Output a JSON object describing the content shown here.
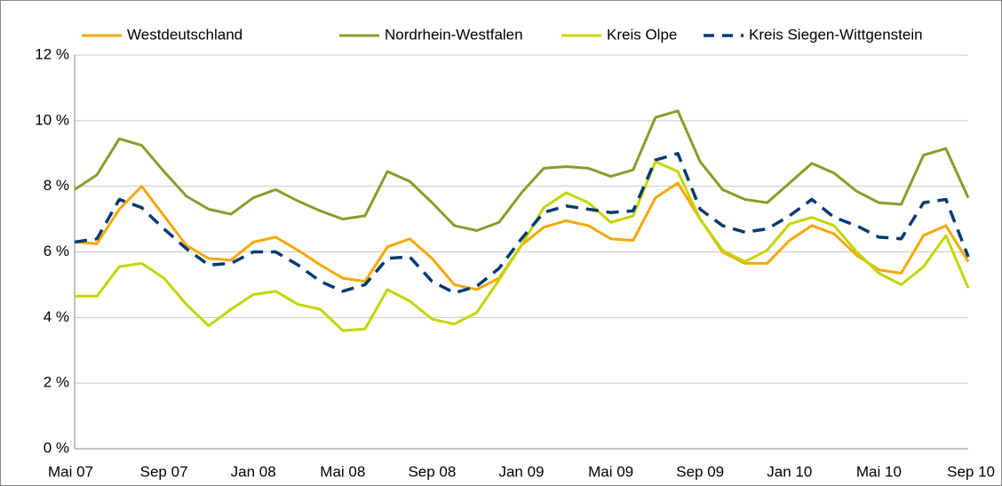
{
  "chart_data": {
    "type": "line",
    "categories": [
      "Mai 07",
      null,
      null,
      null,
      "Sep 07",
      null,
      null,
      null,
      "Jan 08",
      null,
      null,
      null,
      "Mai 08",
      null,
      null,
      null,
      "Sep 08",
      null,
      null,
      null,
      "Jan 09",
      null,
      null,
      null,
      "Mai 09",
      null,
      null,
      null,
      "Sep 09",
      null,
      null,
      null,
      "Jan 10",
      null,
      null,
      null,
      "Mai 10",
      null,
      null,
      null,
      "Sep 10"
    ],
    "series": [
      {
        "name": "Westdeutschland",
        "color": "#f5a800",
        "dashed": false,
        "values": [
          6.3,
          6.25,
          7.3,
          8.0,
          7.1,
          6.2,
          5.8,
          5.75,
          6.3,
          6.45,
          6.05,
          5.6,
          5.2,
          5.1,
          6.15,
          6.4,
          5.8,
          5.0,
          4.85,
          5.2,
          6.2,
          6.75,
          6.95,
          6.8,
          6.4,
          6.35,
          7.65,
          8.1,
          7.0,
          6.0,
          5.65,
          5.65,
          6.35,
          6.8,
          6.55,
          5.9,
          5.45,
          5.35,
          6.5,
          6.8,
          5.7
        ]
      },
      {
        "name": "Nordrhein-Westfalen",
        "color": "#8c9a2a",
        "dashed": false,
        "values": [
          7.9,
          8.35,
          9.45,
          9.25,
          8.45,
          7.7,
          7.3,
          7.15,
          7.65,
          7.9,
          7.55,
          7.25,
          7.0,
          7.1,
          8.45,
          8.15,
          7.5,
          6.8,
          6.65,
          6.9,
          7.8,
          8.55,
          8.6,
          8.55,
          8.3,
          8.5,
          10.1,
          10.3,
          8.75,
          7.9,
          7.6,
          7.5,
          8.1,
          8.7,
          8.4,
          7.85,
          7.5,
          7.45,
          8.95,
          9.15,
          7.65
        ]
      },
      {
        "name": "Kreis Olpe",
        "color": "#c4d600",
        "dashed": false,
        "values": [
          4.65,
          4.65,
          5.55,
          5.65,
          5.2,
          4.4,
          3.75,
          4.25,
          4.7,
          4.8,
          4.4,
          4.25,
          3.6,
          3.65,
          4.85,
          4.5,
          3.95,
          3.8,
          4.15,
          5.15,
          6.2,
          7.35,
          7.8,
          7.5,
          6.9,
          7.1,
          8.75,
          8.45,
          7.0,
          6.05,
          5.7,
          6.05,
          6.85,
          7.05,
          6.8,
          6.0,
          5.35,
          5.0,
          5.55,
          6.5,
          4.9
        ]
      },
      {
        "name": "Kreis Siegen-Wittgenstein",
        "color": "#003a70",
        "dashed": true,
        "values": [
          6.3,
          6.4,
          7.6,
          7.35,
          6.7,
          6.1,
          5.6,
          5.65,
          6.0,
          6.0,
          5.6,
          5.1,
          4.8,
          5.0,
          5.8,
          5.85,
          5.1,
          4.75,
          4.95,
          5.5,
          6.4,
          7.2,
          7.4,
          7.3,
          7.2,
          7.25,
          8.8,
          9.0,
          7.3,
          6.8,
          6.6,
          6.7,
          7.1,
          7.6,
          7.05,
          6.8,
          6.45,
          6.4,
          7.5,
          7.6,
          5.85
        ]
      }
    ],
    "ylim": [
      0,
      12
    ],
    "yticks": [
      {
        "value": 0,
        "label": "0 %"
      },
      {
        "value": 2,
        "label": "2 %"
      },
      {
        "value": 4,
        "label": "4 %"
      },
      {
        "value": 6,
        "label": "6 %"
      },
      {
        "value": 8,
        "label": "8 %"
      },
      {
        "value": 10,
        "label": "10 %"
      },
      {
        "value": 12,
        "label": "12 %"
      }
    ],
    "grid": true,
    "legend": "top"
  }
}
